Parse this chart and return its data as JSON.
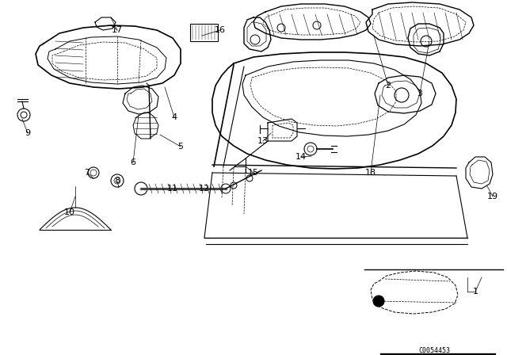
{
  "bg_color": "#ffffff",
  "diagram_code": "C0054453",
  "figsize": [
    6.4,
    4.48
  ],
  "dpi": 100,
  "labels": [
    [
      "1",
      600,
      368
    ],
    [
      "2",
      490,
      108
    ],
    [
      "3",
      530,
      118
    ],
    [
      "4",
      218,
      148
    ],
    [
      "5",
      228,
      185
    ],
    [
      "6",
      168,
      205
    ],
    [
      "7",
      118,
      218
    ],
    [
      "8",
      148,
      228
    ],
    [
      "9",
      35,
      168
    ],
    [
      "10",
      88,
      268
    ],
    [
      "11",
      218,
      238
    ],
    [
      "12",
      258,
      238
    ],
    [
      "13",
      338,
      178
    ],
    [
      "14",
      378,
      198
    ],
    [
      "15",
      328,
      218
    ],
    [
      "16",
      278,
      38
    ],
    [
      "17",
      148,
      38
    ],
    [
      "18",
      468,
      218
    ],
    [
      "19",
      608,
      248
    ]
  ]
}
